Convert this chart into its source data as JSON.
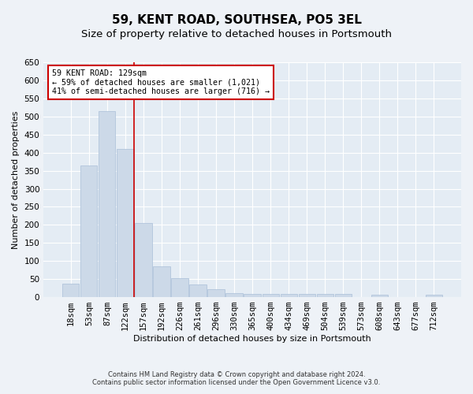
{
  "title": "59, KENT ROAD, SOUTHSEA, PO5 3EL",
  "subtitle": "Size of property relative to detached houses in Portsmouth",
  "xlabel": "Distribution of detached houses by size in Portsmouth",
  "ylabel": "Number of detached properties",
  "categories": [
    "18sqm",
    "53sqm",
    "87sqm",
    "122sqm",
    "157sqm",
    "192sqm",
    "226sqm",
    "261sqm",
    "296sqm",
    "330sqm",
    "365sqm",
    "400sqm",
    "434sqm",
    "469sqm",
    "504sqm",
    "539sqm",
    "573sqm",
    "608sqm",
    "643sqm",
    "677sqm",
    "712sqm"
  ],
  "values": [
    38,
    365,
    515,
    410,
    205,
    85,
    53,
    35,
    22,
    11,
    8,
    8,
    8,
    8,
    8,
    8,
    0,
    6,
    0,
    0,
    6
  ],
  "bar_color": "#ccd9e8",
  "bar_edge_color": "#aabfd8",
  "vline_x_index": 3.5,
  "vline_color": "#cc0000",
  "annotation_text": "59 KENT ROAD: 129sqm\n← 59% of detached houses are smaller (1,021)\n41% of semi-detached houses are larger (716) →",
  "annotation_box_color": "#ffffff",
  "annotation_box_edge_color": "#cc0000",
  "ylim": [
    0,
    650
  ],
  "yticks": [
    0,
    50,
    100,
    150,
    200,
    250,
    300,
    350,
    400,
    450,
    500,
    550,
    600,
    650
  ],
  "footer_line1": "Contains HM Land Registry data © Crown copyright and database right 2024.",
  "footer_line2": "Contains public sector information licensed under the Open Government Licence v3.0.",
  "bg_color": "#eef2f7",
  "plot_bg_color": "#e4ecf4",
  "grid_color": "#ffffff",
  "title_fontsize": 11,
  "subtitle_fontsize": 9.5,
  "axis_label_fontsize": 8,
  "tick_fontsize": 7.5,
  "footer_fontsize": 6
}
